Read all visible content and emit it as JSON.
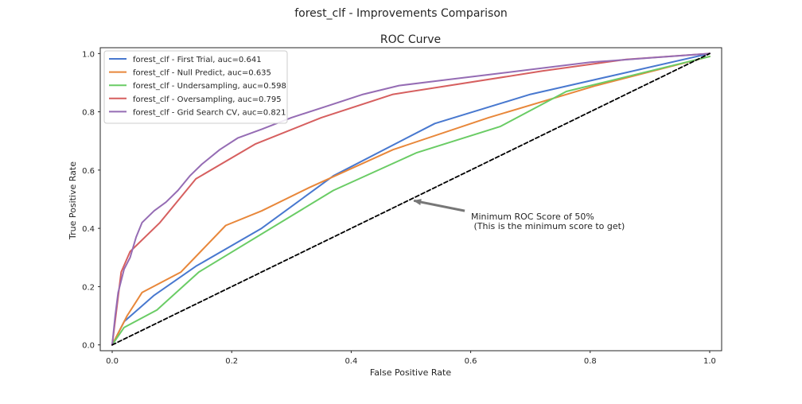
{
  "figure": {
    "suptitle": "forest_clf - Improvements Comparison"
  },
  "chart_data": {
    "type": "line",
    "title": "ROC Curve",
    "xlabel": "False Positive Rate",
    "ylabel": "True Positive Rate",
    "xlim": [
      -0.02,
      1.02
    ],
    "ylim": [
      -0.02,
      1.02
    ],
    "grid": false,
    "legend_position": "top-left",
    "xticks": [
      0.0,
      0.2,
      0.4,
      0.6,
      0.8,
      1.0
    ],
    "xtick_labels": [
      "0.0",
      "0.2",
      "0.4",
      "0.6",
      "0.8",
      "1.0"
    ],
    "yticks": [
      0.0,
      0.2,
      0.4,
      0.6,
      0.8,
      1.0
    ],
    "ytick_labels": [
      "0.0",
      "0.2",
      "0.4",
      "0.6",
      "0.8",
      "1.0"
    ],
    "series": [
      {
        "name": "forest_clf - First Trial, auc=0.641",
        "color": "#4878cf",
        "points": [
          [
            0,
            0
          ],
          [
            0.02,
            0.08
          ],
          [
            0.07,
            0.17
          ],
          [
            0.14,
            0.27
          ],
          [
            0.25,
            0.4
          ],
          [
            0.37,
            0.58
          ],
          [
            0.54,
            0.76
          ],
          [
            0.7,
            0.86
          ],
          [
            0.85,
            0.93
          ],
          [
            1.0,
            1.0
          ]
        ]
      },
      {
        "name": "forest_clf - Null Predict, auc=0.635",
        "color": "#e8873a",
        "points": [
          [
            0,
            0
          ],
          [
            0.025,
            0.1
          ],
          [
            0.05,
            0.18
          ],
          [
            0.115,
            0.25
          ],
          [
            0.19,
            0.41
          ],
          [
            0.25,
            0.46
          ],
          [
            0.33,
            0.54
          ],
          [
            0.47,
            0.67
          ],
          [
            0.63,
            0.78
          ],
          [
            0.81,
            0.89
          ],
          [
            1.0,
            0.99
          ]
        ]
      },
      {
        "name": "forest_clf - Undersampling, auc=0.598",
        "color": "#6acc65",
        "points": [
          [
            0,
            0
          ],
          [
            0.02,
            0.06
          ],
          [
            0.075,
            0.12
          ],
          [
            0.145,
            0.25
          ],
          [
            0.37,
            0.53
          ],
          [
            0.51,
            0.66
          ],
          [
            0.65,
            0.75
          ],
          [
            0.76,
            0.87
          ],
          [
            0.9,
            0.94
          ],
          [
            1.0,
            0.99
          ]
        ]
      },
      {
        "name": "forest_clf - Oversampling, auc=0.795",
        "color": "#d65f5f",
        "points": [
          [
            0,
            0
          ],
          [
            0.015,
            0.25
          ],
          [
            0.03,
            0.32
          ],
          [
            0.08,
            0.42
          ],
          [
            0.14,
            0.57
          ],
          [
            0.24,
            0.69
          ],
          [
            0.35,
            0.78
          ],
          [
            0.47,
            0.86
          ],
          [
            0.72,
            0.94
          ],
          [
            0.86,
            0.98
          ],
          [
            1.0,
            1.0
          ]
        ]
      },
      {
        "name": "forest_clf - Grid Search CV, auc=0.821",
        "color": "#956cb4",
        "points": [
          [
            0,
            0
          ],
          [
            0.005,
            0.1
          ],
          [
            0.01,
            0.18
          ],
          [
            0.02,
            0.26
          ],
          [
            0.03,
            0.3
          ],
          [
            0.04,
            0.37
          ],
          [
            0.05,
            0.42
          ],
          [
            0.07,
            0.46
          ],
          [
            0.09,
            0.49
          ],
          [
            0.11,
            0.53
          ],
          [
            0.13,
            0.58
          ],
          [
            0.15,
            0.62
          ],
          [
            0.18,
            0.67
          ],
          [
            0.21,
            0.71
          ],
          [
            0.25,
            0.74
          ],
          [
            0.3,
            0.78
          ],
          [
            0.36,
            0.82
          ],
          [
            0.42,
            0.86
          ],
          [
            0.48,
            0.89
          ],
          [
            0.56,
            0.91
          ],
          [
            0.64,
            0.93
          ],
          [
            0.72,
            0.95
          ],
          [
            0.8,
            0.97
          ],
          [
            0.9,
            0.985
          ],
          [
            1.0,
            1.0
          ]
        ]
      },
      {
        "color": "#000000",
        "dashed": true,
        "points": [
          [
            0,
            0
          ],
          [
            1,
            1
          ]
        ]
      }
    ],
    "annotation": {
      "text_line1": "Minimum ROC Score of 50%",
      "text_line2": " (This is the minimum score to get)",
      "arrow_from": [
        0.59,
        0.46
      ],
      "arrow_to": [
        0.505,
        0.495
      ],
      "arrow_color": "#777777"
    }
  }
}
